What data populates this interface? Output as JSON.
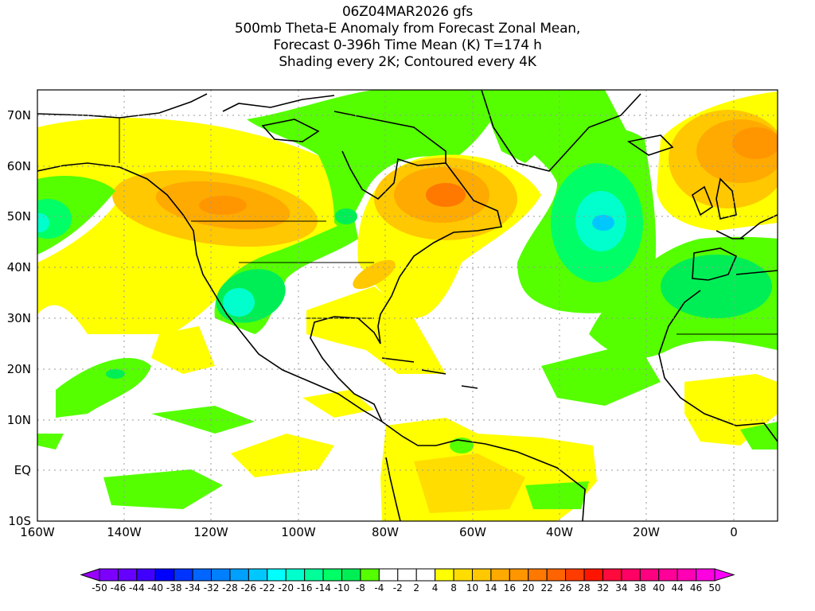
{
  "title": {
    "line1": "06Z04MAR2026 gfs",
    "line2": "500mb Theta-E Anomaly from Forecast Zonal Mean,",
    "line3": "Forecast 0-396h Time Mean (K) T=174 h",
    "line4": "Shading every 2K; Contoured every 4K"
  },
  "map": {
    "lat_labels": [
      "70N",
      "60N",
      "50N",
      "40N",
      "30N",
      "20N",
      "10N",
      "EQ",
      "10S"
    ],
    "lon_labels": [
      "160W",
      "140W",
      "120W",
      "100W",
      "80W",
      "60W",
      "40W",
      "20W",
      "0"
    ],
    "lon_range": [
      -160,
      10
    ],
    "lat_range": [
      -10,
      75
    ]
  },
  "colorbar": {
    "labels": [
      "-50",
      "-46",
      "-44",
      "-40",
      "-38",
      "-34",
      "-32",
      "-28",
      "-26",
      "-22",
      "-20",
      "-16",
      "-14",
      "-10",
      "-8",
      "-4",
      "-2",
      "2",
      "4",
      "8",
      "10",
      "14",
      "16",
      "20",
      "22",
      "26",
      "28",
      "32",
      "34",
      "38",
      "40",
      "44",
      "46",
      "50"
    ],
    "colors": [
      "#7d00ff",
      "#6600ff",
      "#4000ff",
      "#0000ff",
      "#0033ff",
      "#0066ff",
      "#0080ff",
      "#00a0ff",
      "#00c8ff",
      "#00ffff",
      "#00ffcc",
      "#00ff99",
      "#00ff66",
      "#00ee55",
      "#55ff00",
      "#ffffff",
      "#ffffff",
      "#ffffff",
      "#ffff00",
      "#ffdd00",
      "#ffc800",
      "#ffaa00",
      "#ff9600",
      "#ff7800",
      "#ff6400",
      "#ff3c00",
      "#ff1400",
      "#ff0a3c",
      "#ff0064",
      "#ff0080",
      "#ff0099",
      "#ff00b4",
      "#ff00e0"
    ],
    "under_color": "#9900ff",
    "over_color": "#ff00ff"
  }
}
